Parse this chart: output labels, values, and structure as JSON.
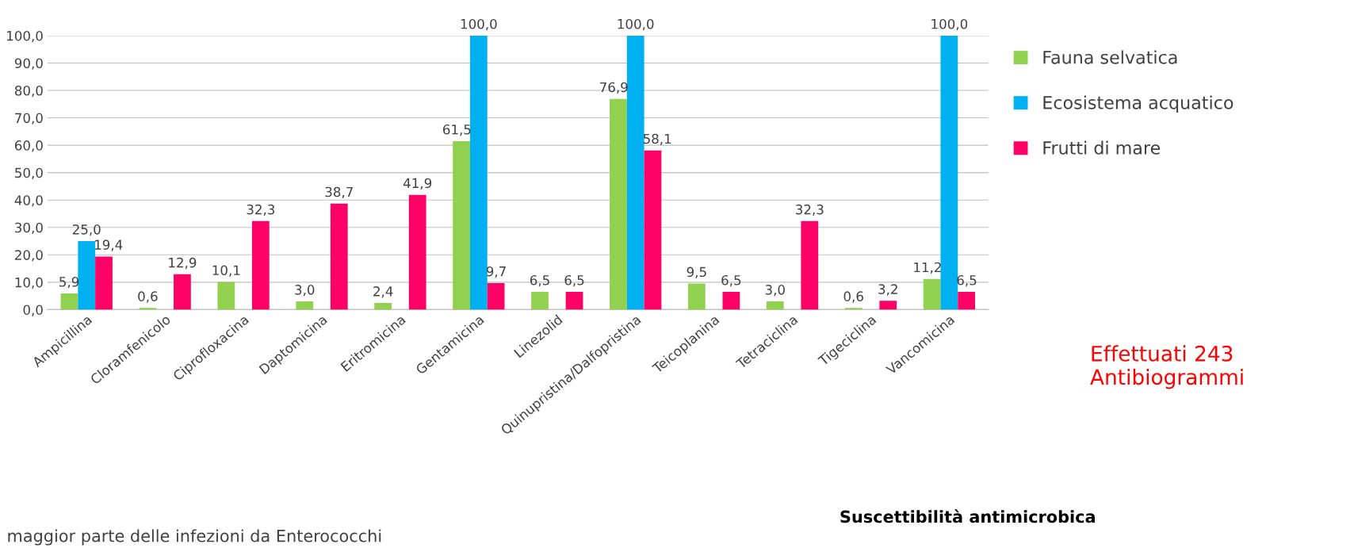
{
  "chart_data": {
    "type": "bar",
    "categories": [
      "Ampicillina",
      "Cloramfenicolo",
      "Ciprofloxacina",
      "Daptomicina",
      "Eritromicina",
      "Gentamicina",
      "Linezolid",
      "Quinupristina/Dalfopristina",
      "Teicoplanina",
      "Tetraciclina",
      "Tigeciclina",
      "Vancomicina"
    ],
    "series": [
      {
        "name": "Fauna selvatica",
        "color": "#92d050",
        "values": [
          5.9,
          0.6,
          10.1,
          3.0,
          2.4,
          61.5,
          6.5,
          76.9,
          9.5,
          3.0,
          0.6,
          11.2
        ],
        "value_labels": [
          "5,9",
          "0,6",
          "10,1",
          "3,0",
          "2,4",
          "61,5",
          "6,5",
          "76,9",
          "9,5",
          "3,0",
          "0,6",
          "11,2"
        ]
      },
      {
        "name": "Ecosistema acquatico",
        "color": "#00b0f0",
        "values": [
          25.0,
          null,
          null,
          null,
          null,
          100.0,
          null,
          100.0,
          null,
          null,
          null,
          100.0
        ],
        "value_labels": [
          "25,0",
          null,
          null,
          null,
          null,
          "100,0",
          null,
          "100,0",
          null,
          null,
          null,
          "100,0"
        ]
      },
      {
        "name": "Frutti di mare",
        "color": "#ff0066",
        "values": [
          19.4,
          12.9,
          32.3,
          38.7,
          41.9,
          9.7,
          6.5,
          58.1,
          6.5,
          32.3,
          3.2,
          6.5
        ],
        "value_labels": [
          "19,4",
          "12,9",
          "32,3",
          "38,7",
          "41,9",
          "9,7",
          "6,5",
          "58,1",
          "6,5",
          "32,3",
          "3,2",
          "6,5"
        ]
      }
    ],
    "ylim": [
      0,
      100
    ],
    "yticks": [
      {
        "value": 0,
        "label": "0,0"
      },
      {
        "value": 10,
        "label": "10,0"
      },
      {
        "value": 20,
        "label": "20,0"
      },
      {
        "value": 30,
        "label": "30,0"
      },
      {
        "value": 40,
        "label": "40,0"
      },
      {
        "value": 50,
        "label": "50,0"
      },
      {
        "value": 60,
        "label": "60,0"
      },
      {
        "value": 70,
        "label": "70,0"
      },
      {
        "value": 80,
        "label": "80,0"
      },
      {
        "value": 90,
        "label": "90,0"
      },
      {
        "value": 100,
        "label": "100,0"
      }
    ],
    "grid": "y",
    "legend": "right",
    "annotations": [
      "Effettuati 243 Antibiogrammi",
      "Suscettibilità antimicrobica",
      "maggior parte delle infezioni da Enterococchi"
    ]
  }
}
